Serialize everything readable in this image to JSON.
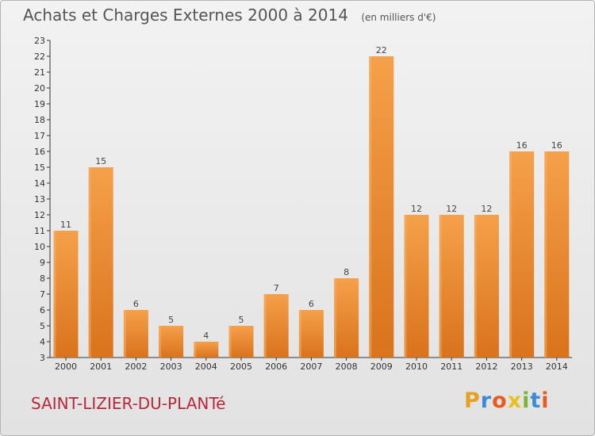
{
  "chart_data": {
    "type": "bar",
    "title": "Achats et Charges Externes 2000 à 2014",
    "unit_label": "(en milliers d'€)",
    "categories": [
      "2000",
      "2001",
      "2002",
      "2003",
      "2004",
      "2005",
      "2006",
      "2007",
      "2008",
      "2009",
      "2010",
      "2011",
      "2012",
      "2013",
      "2014"
    ],
    "values": [
      11,
      15,
      6,
      5,
      4,
      5,
      7,
      6,
      8,
      22,
      12,
      12,
      12,
      16,
      16
    ],
    "xlabel": "",
    "ylabel": "",
    "ylim": [
      3,
      23
    ],
    "yticks": [
      3,
      4,
      5,
      6,
      7,
      8,
      9,
      10,
      11,
      12,
      13,
      14,
      15,
      16,
      17,
      18,
      19,
      20,
      21,
      22,
      23
    ],
    "grid": false,
    "bar_color_top": "#f5a04a",
    "bar_color_bottom": "#d9731c"
  },
  "commune": "SAINT-LIZIER-DU-PLANTé",
  "brand": {
    "letters": [
      "P",
      "r",
      "o",
      "x",
      "i",
      "t",
      "i"
    ],
    "colors": [
      "#e8a020",
      "#3c8ad8",
      "#e85a1e",
      "#e8c020",
      "#7ab630",
      "#3c8ad8",
      "#e85a1e"
    ]
  }
}
